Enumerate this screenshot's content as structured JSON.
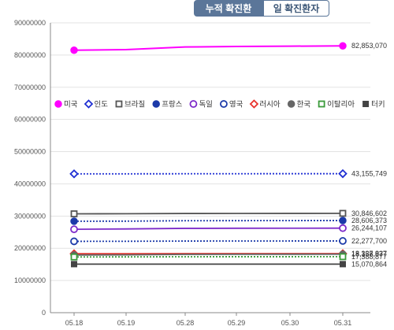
{
  "tabs": {
    "cumulative": "누적 확진환자",
    "daily": "일 확진환자"
  },
  "chart_data": {
    "type": "line",
    "title": "",
    "xlabel": "",
    "ylabel": "",
    "categories": [
      "05.18",
      "05.19",
      "05.28",
      "05.29",
      "05.30",
      "05.31"
    ],
    "ylim": [
      0,
      90000000
    ],
    "yticks": [
      0,
      10000000,
      20000000,
      30000000,
      40000000,
      50000000,
      60000000,
      70000000,
      80000000,
      90000000
    ],
    "grid": true,
    "legend_position": "middle",
    "series": [
      {
        "name": "미국",
        "color": "#ff00ff",
        "marker": "circle-filled",
        "dash": "solid",
        "values": [
          81500000,
          81700000,
          82500000,
          82650000,
          82750000,
          82853070
        ],
        "end_label": "82,853,070"
      },
      {
        "name": "인도",
        "color": "#1f2fd3",
        "marker": "diamond-open",
        "dash": "dotted",
        "values": [
          43100000,
          43110000,
          43130000,
          43140000,
          43150000,
          43155749
        ],
        "end_label": "43,155,749"
      },
      {
        "name": "브라질",
        "color": "#555555",
        "marker": "square-open",
        "dash": "solid",
        "values": [
          30700000,
          30720000,
          30800000,
          30815000,
          30830000,
          30846602
        ],
        "end_label": "30,846,602"
      },
      {
        "name": "프랑스",
        "color": "#1c3aa9",
        "marker": "circle-filled",
        "dash": "dotted",
        "values": [
          28400000,
          28420000,
          28550000,
          28570000,
          28590000,
          28606373
        ],
        "end_label": "28,606,373"
      },
      {
        "name": "독일",
        "color": "#7d2bc9",
        "marker": "circle-open",
        "dash": "solid",
        "values": [
          25900000,
          26000000,
          26180000,
          26210000,
          26230000,
          26244107
        ],
        "end_label": "26,244,107"
      },
      {
        "name": "영국",
        "color": "#1c3aa9",
        "marker": "circle-open",
        "dash": "dotted",
        "values": [
          22150000,
          22170000,
          22240000,
          22255000,
          22265000,
          22277700
        ],
        "end_label": "22,277,700"
      },
      {
        "name": "러시아",
        "color": "#e8322c",
        "marker": "diamond-open",
        "dash": "solid",
        "values": [
          18300000,
          18310000,
          18330000,
          18333000,
          18335000,
          18337837
        ],
        "end_label": "18,337,837"
      },
      {
        "name": "한국",
        "color": "#666666",
        "marker": "circle-filled",
        "dash": "solid",
        "values": [
          17900000,
          17950000,
          18100000,
          18120000,
          18140000,
          18158977
        ],
        "end_label": "18,158,977"
      },
      {
        "name": "이탈리아",
        "color": "#3a9a3a",
        "marker": "square-open",
        "dash": "dotted",
        "values": [
          17300000,
          17320000,
          17370000,
          17380000,
          17385000,
          17388877
        ],
        "end_label": "17,388,877"
      },
      {
        "name": "터키",
        "color": "#444444",
        "marker": "square-filled",
        "dash": "solid",
        "values": [
          15070000,
          15070200,
          15070500,
          15070600,
          15070700,
          15070864
        ],
        "end_label": "15,070,864"
      }
    ]
  }
}
